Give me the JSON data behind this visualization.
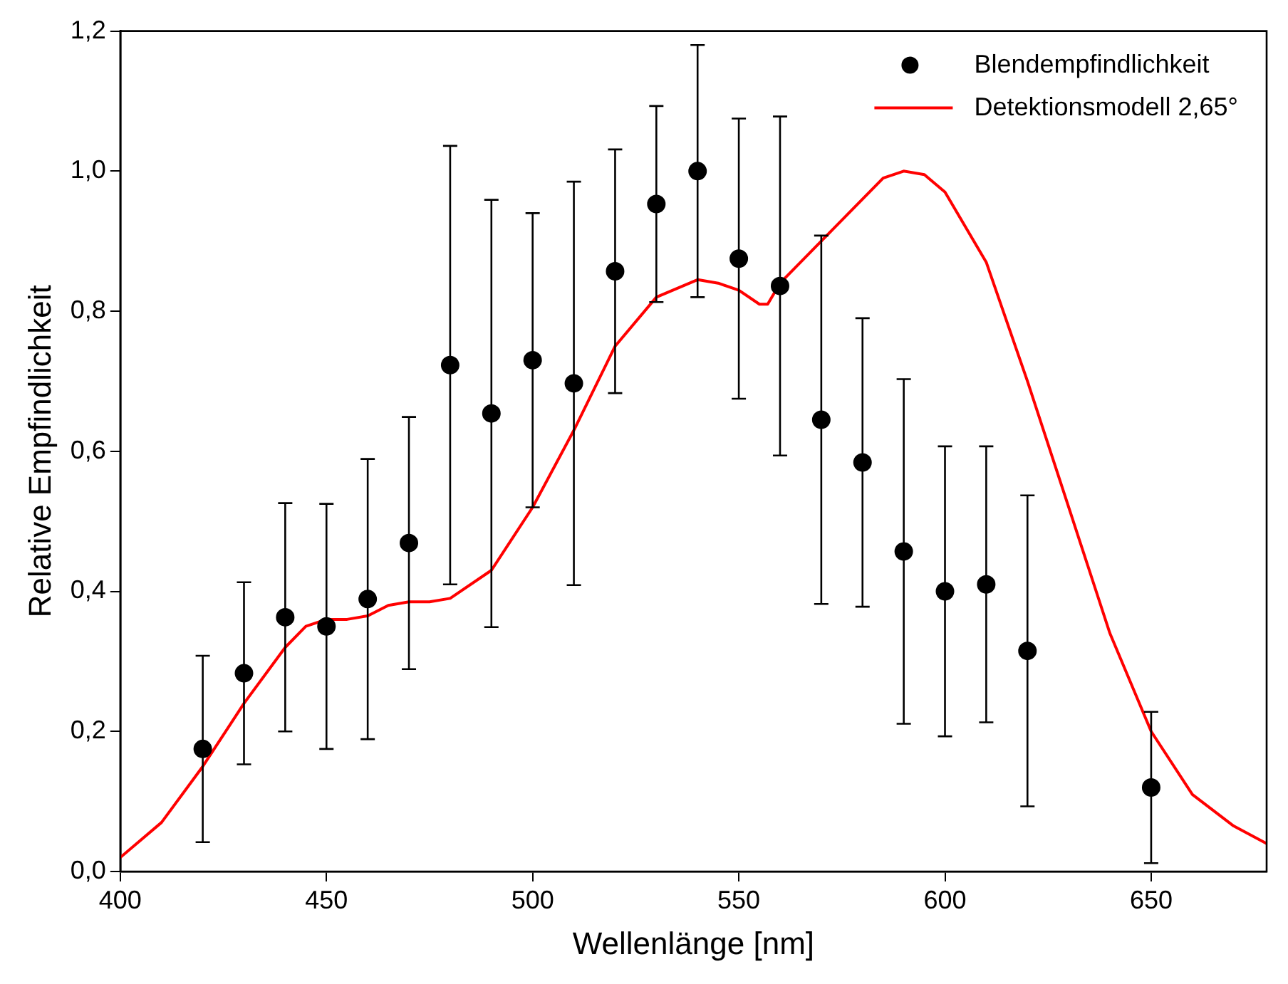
{
  "chart_data": {
    "type": "scatter",
    "xlabel": "Wellenlänge [nm]",
    "ylabel": "Relative Empfindlichkeit",
    "xlim": [
      400,
      678
    ],
    "ylim": [
      0,
      1.2
    ],
    "xticks": [
      400,
      450,
      500,
      550,
      600,
      650
    ],
    "yticks": [
      {
        "value": 0,
        "label": "0,0"
      },
      {
        "value": 0.2,
        "label": "0,2"
      },
      {
        "value": 0.4,
        "label": "0,4"
      },
      {
        "value": 0.6,
        "label": "0,6"
      },
      {
        "value": 0.8,
        "label": "0,8"
      },
      {
        "value": 1,
        "label": "1,0"
      },
      {
        "value": 1.2,
        "label": "1,2"
      }
    ],
    "grid": false,
    "legend": "top right",
    "series": [
      {
        "name": "Blendempfindlichkeit",
        "type": "scatter",
        "marker": "circle",
        "color": "#000000",
        "x": [
          420,
          430,
          440,
          450,
          460,
          470,
          480,
          490,
          500,
          510,
          520,
          530,
          540,
          550,
          560,
          570,
          580,
          590,
          600,
          610,
          620,
          650
        ],
        "values": [
          0.175,
          0.283,
          0.363,
          0.35,
          0.389,
          0.469,
          0.723,
          0.654,
          0.73,
          0.697,
          0.857,
          0.953,
          1.0,
          0.875,
          0.836,
          0.645,
          0.584,
          0.457,
          0.4,
          0.41,
          0.315,
          0.12
        ],
        "errors": [
          0.133,
          0.13,
          0.163,
          0.175,
          0.2,
          0.18,
          0.313,
          0.305,
          0.21,
          0.288,
          0.174,
          0.14,
          0.18,
          0.2,
          0.242,
          0.263,
          0.206,
          0.246,
          0.207,
          0.197,
          0.222,
          0.108
        ]
      },
      {
        "name": "Detektionsmodell 2,65°",
        "type": "line",
        "marker": "none",
        "line_style": "solid",
        "color": "#ff0000",
        "x": [
          400,
          410,
          420,
          430,
          440,
          445,
          450,
          455,
          460,
          465,
          470,
          475,
          480,
          490,
          500,
          510,
          520,
          530,
          540,
          545,
          550,
          555,
          557,
          560,
          570,
          580,
          585,
          590,
          595,
          600,
          610,
          620,
          630,
          640,
          650,
          660,
          670,
          678
        ],
        "values": [
          0.02,
          0.07,
          0.15,
          0.24,
          0.32,
          0.35,
          0.36,
          0.36,
          0.365,
          0.38,
          0.385,
          0.385,
          0.39,
          0.43,
          0.52,
          0.63,
          0.75,
          0.82,
          0.845,
          0.84,
          0.83,
          0.81,
          0.81,
          0.84,
          0.9,
          0.96,
          0.99,
          1.0,
          0.995,
          0.97,
          0.87,
          0.7,
          0.52,
          0.34,
          0.2,
          0.11,
          0.065,
          0.04
        ]
      }
    ]
  }
}
